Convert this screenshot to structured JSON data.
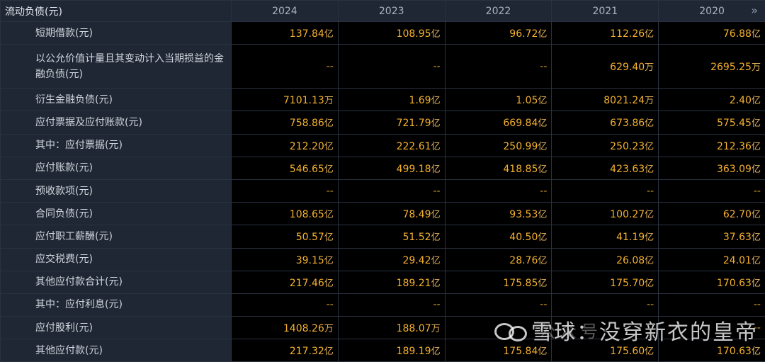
{
  "table": {
    "header": {
      "section_title": "流动负债(元)",
      "years": [
        "2024",
        "2023",
        "2022",
        "2021",
        "2020"
      ],
      "more_icon": "double-chevron-right-icon"
    },
    "rows": [
      {
        "label": "短期借款(元)",
        "values": [
          [
            "137.84",
            "亿"
          ],
          [
            "108.95",
            "亿"
          ],
          [
            "96.72",
            "亿"
          ],
          [
            "112.26",
            "亿"
          ],
          [
            "76.88",
            "亿"
          ]
        ]
      },
      {
        "label": "以公允价值计量且其变动计入当期损益的金融负债(元)",
        "values": [
          [
            "--",
            ""
          ],
          [
            "--",
            ""
          ],
          [
            "--",
            ""
          ],
          [
            "629.40",
            "万"
          ],
          [
            "2695.25",
            "万"
          ]
        ]
      },
      {
        "label": "衍生金融负债(元)",
        "values": [
          [
            "7101.13",
            "万"
          ],
          [
            "1.69",
            "亿"
          ],
          [
            "1.05",
            "亿"
          ],
          [
            "8021.24",
            "万"
          ],
          [
            "2.40",
            "亿"
          ]
        ]
      },
      {
        "label": "应付票据及应付账款(元)",
        "values": [
          [
            "758.86",
            "亿"
          ],
          [
            "721.79",
            "亿"
          ],
          [
            "669.84",
            "亿"
          ],
          [
            "673.86",
            "亿"
          ],
          [
            "575.45",
            "亿"
          ]
        ]
      },
      {
        "label": "其中：应付票据(元)",
        "values": [
          [
            "212.20",
            "亿"
          ],
          [
            "222.61",
            "亿"
          ],
          [
            "250.99",
            "亿"
          ],
          [
            "250.23",
            "亿"
          ],
          [
            "212.36",
            "亿"
          ]
        ]
      },
      {
        "label": "应付账款(元)",
        "values": [
          [
            "546.65",
            "亿"
          ],
          [
            "499.18",
            "亿"
          ],
          [
            "418.85",
            "亿"
          ],
          [
            "423.63",
            "亿"
          ],
          [
            "363.09",
            "亿"
          ]
        ]
      },
      {
        "label": "预收款项(元)",
        "values": [
          [
            "--",
            ""
          ],
          [
            "--",
            ""
          ],
          [
            "--",
            ""
          ],
          [
            "--",
            ""
          ],
          [
            "--",
            ""
          ]
        ]
      },
      {
        "label": "合同负债(元)",
        "values": [
          [
            "108.65",
            "亿"
          ],
          [
            "78.49",
            "亿"
          ],
          [
            "93.53",
            "亿"
          ],
          [
            "100.27",
            "亿"
          ],
          [
            "62.70",
            "亿"
          ]
        ]
      },
      {
        "label": "应付职工薪酬(元)",
        "values": [
          [
            "50.57",
            "亿"
          ],
          [
            "51.52",
            "亿"
          ],
          [
            "40.50",
            "亿"
          ],
          [
            "41.19",
            "亿"
          ],
          [
            "37.63",
            "亿"
          ]
        ]
      },
      {
        "label": "应交税费(元)",
        "values": [
          [
            "39.15",
            "亿"
          ],
          [
            "29.42",
            "亿"
          ],
          [
            "28.76",
            "亿"
          ],
          [
            "26.08",
            "亿"
          ],
          [
            "24.01",
            "亿"
          ]
        ]
      },
      {
        "label": "其他应付款合计(元)",
        "values": [
          [
            "217.46",
            "亿"
          ],
          [
            "189.21",
            "亿"
          ],
          [
            "175.85",
            "亿"
          ],
          [
            "175.70",
            "亿"
          ],
          [
            "170.63",
            "亿"
          ]
        ]
      },
      {
        "label": "其中：应付利息(元)",
        "values": [
          [
            "--",
            ""
          ],
          [
            "--",
            ""
          ],
          [
            "--",
            ""
          ],
          [
            "--",
            ""
          ],
          [
            "--",
            ""
          ]
        ]
      },
      {
        "label": "应付股利(元)",
        "values": [
          [
            "1408.26",
            "万"
          ],
          [
            "188.07",
            "万"
          ],
          [
            "",
            ""
          ],
          [
            "",
            ""
          ],
          [
            "--",
            ""
          ]
        ]
      },
      {
        "label": "其他应付款(元)",
        "values": [
          [
            "217.32",
            "亿"
          ],
          [
            "189.19",
            "亿"
          ],
          [
            "175.84",
            "亿"
          ],
          [
            "175.60",
            "亿"
          ],
          [
            "170.63",
            "亿"
          ]
        ]
      }
    ]
  },
  "watermark": {
    "line_main": "雪球：没穿新衣的皇帝",
    "line_faint": "公众号·"
  }
}
